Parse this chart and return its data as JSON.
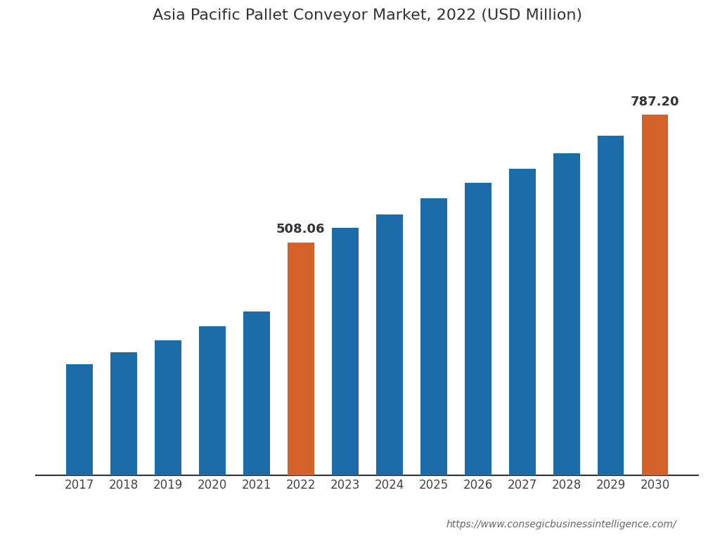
{
  "title": "Asia Pacific Pallet Conveyor Market, 2022 (USD Million)",
  "years": [
    2017,
    2018,
    2019,
    2020,
    2021,
    2022,
    2023,
    2024,
    2025,
    2026,
    2027,
    2028,
    2029,
    2030
  ],
  "values": [
    243,
    268,
    295,
    325,
    358,
    508.06,
    540,
    570,
    605,
    638,
    670,
    703,
    742,
    787.2
  ],
  "bar_colors": [
    "#1b6ca8",
    "#1b6ca8",
    "#1b6ca8",
    "#1b6ca8",
    "#1b6ca8",
    "#d4622a",
    "#1b6ca8",
    "#1b6ca8",
    "#1b6ca8",
    "#1b6ca8",
    "#1b6ca8",
    "#1b6ca8",
    "#1b6ca8",
    "#d4622a"
  ],
  "annotate_years": [
    2022,
    2030
  ],
  "annotate_values": [
    508.06,
    787.2
  ],
  "annotate_texts": [
    "508.06",
    "787.20"
  ],
  "url_text": "https://www.consegicbusinessintelligence.com/",
  "background_color": "#ffffff",
  "title_fontsize": 16,
  "tick_fontsize": 12,
  "annotation_fontsize": 13,
  "url_fontsize": 10,
  "ylim": [
    0,
    920
  ]
}
